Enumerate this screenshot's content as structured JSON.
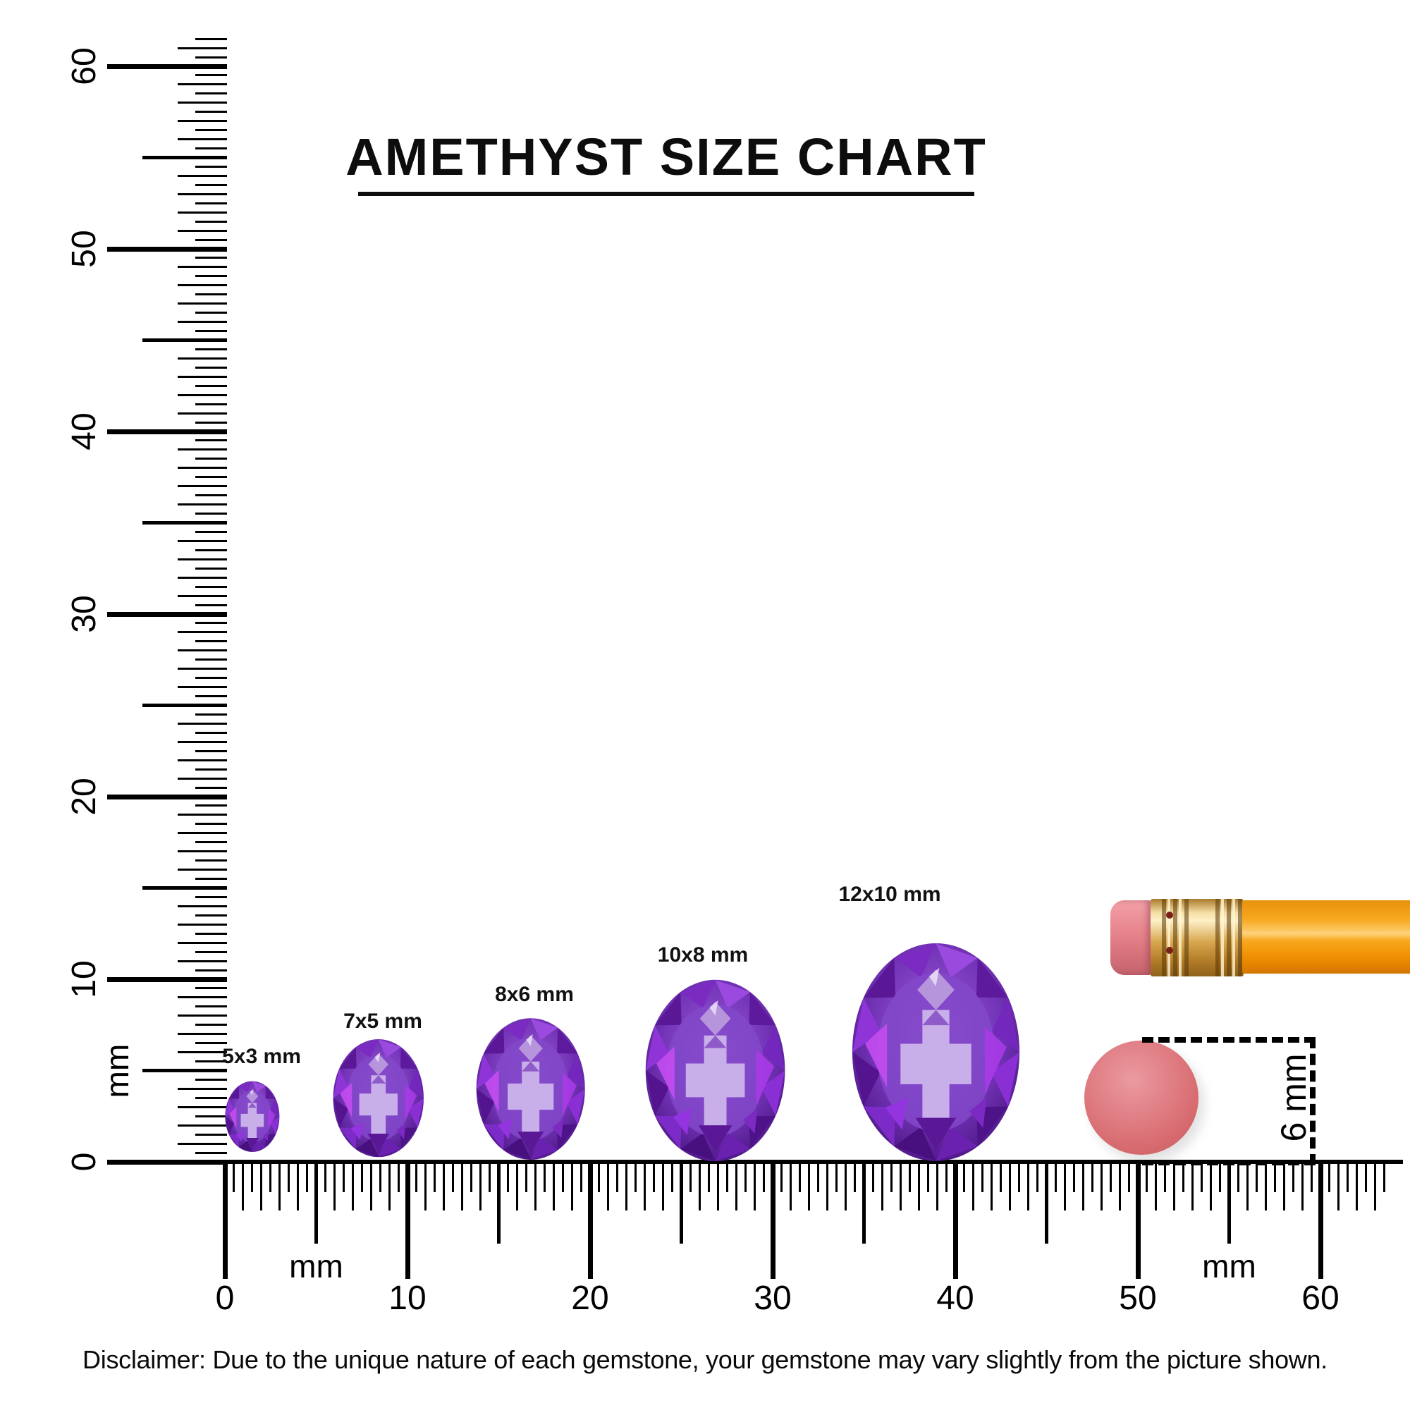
{
  "title": "AMETHYST SIZE CHART",
  "vertical_ruler": {
    "unit": "mm",
    "labels": [
      "0",
      "10",
      "20",
      "30",
      "40",
      "50",
      "60"
    ]
  },
  "horizontal_ruler": {
    "unit_left": "mm",
    "unit_right": "mm",
    "labels": [
      "0",
      "10",
      "20",
      "30",
      "40",
      "50",
      "60"
    ]
  },
  "gems": [
    {
      "label": "5x3 mm",
      "length_mm": 5,
      "width_mm": 3
    },
    {
      "label": "7x5 mm",
      "length_mm": 7,
      "width_mm": 5
    },
    {
      "label": "8x6 mm",
      "length_mm": 8,
      "width_mm": 6
    },
    {
      "label": "10x8 mm",
      "length_mm": 10,
      "width_mm": 8
    },
    {
      "label": "12x10 mm",
      "length_mm": 12,
      "width_mm": 10
    }
  ],
  "eraser_measurement": {
    "label": "6 mm",
    "diameter_mm": 6
  },
  "disclaimer": "Disclaimer: Due to the unique nature of each gemstone, your gemstone may vary slightly from the picture shown.",
  "colors": {
    "amethyst_dark": "#45117c",
    "amethyst_mid": "#7435b8",
    "amethyst_light": "#c9afe9",
    "amethyst_accent": "#c44df0",
    "pencil_body_orange": "#f8a81e",
    "ferrule_gold": "#d9a851",
    "pencil_eraser_pink": "#e8868e",
    "round_eraser_pink": "#d66a6e",
    "ink": "#000000"
  }
}
